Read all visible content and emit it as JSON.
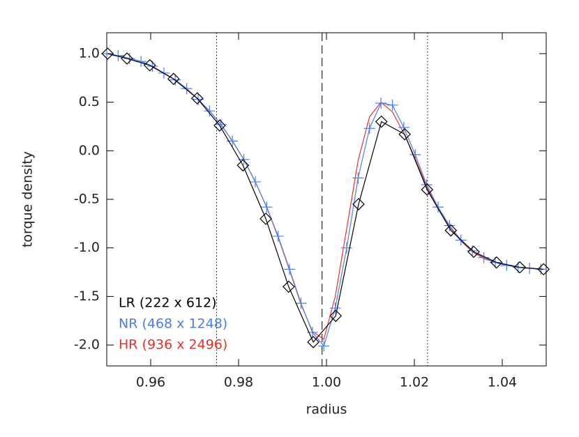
{
  "chart_data": {
    "type": "line",
    "x_label": "radius",
    "y_label": "torque density",
    "xlim": [
      0.95,
      1.05
    ],
    "ylim": [
      -2.215,
      1.215
    ],
    "xticks": [
      0.96,
      0.98,
      {
        "value": 1,
        "label": "1.00"
      },
      1.02,
      1.04
    ],
    "yticks": [
      {
        "value": 1,
        "label": "1.0"
      },
      0.5,
      {
        "value": 0,
        "label": "0.0"
      },
      -0.5,
      {
        "value": -1,
        "label": "-1.0"
      },
      -1.5,
      {
        "value": -2,
        "label": "-2.0"
      }
    ],
    "legend": "lower left",
    "reference_lines": [
      {
        "x": 0.975,
        "style": "dotted"
      },
      {
        "x": 0.999,
        "style": "dashed"
      },
      {
        "x": 1.023,
        "style": "dotted"
      }
    ],
    "series": [
      {
        "name": "LR (222 x 612)",
        "color": "#000000",
        "marker": "diamond",
        "x": [
          0.9502,
          0.9546,
          0.9598,
          0.9652,
          0.9706,
          0.9757,
          0.981,
          0.9862,
          0.9914,
          0.997,
          1.0021,
          1.0073,
          1.0125,
          1.0178,
          1.0229,
          1.0283,
          1.0335,
          1.0387,
          1.044,
          1.0494
        ],
        "values": [
          1.0,
          0.95,
          0.88,
          0.74,
          0.54,
          0.26,
          -0.15,
          -0.7,
          -1.4,
          -1.97,
          -1.7,
          -0.55,
          0.3,
          0.17,
          -0.4,
          -0.82,
          -1.04,
          -1.15,
          -1.2,
          -1.22
        ]
      },
      {
        "name": "NR (468 x 1248)",
        "color": "#4a7cf0",
        "marker": "plus",
        "x": [
          0.95,
          0.9526,
          0.9552,
          0.9578,
          0.9604,
          0.963,
          0.9656,
          0.9682,
          0.9708,
          0.9734,
          0.976,
          0.9786,
          0.9812,
          0.9838,
          0.9864,
          0.989,
          0.9916,
          0.9942,
          0.9968,
          0.9994,
          1.002,
          1.0046,
          1.0072,
          1.0098,
          1.0124,
          1.015,
          1.0176,
          1.0202,
          1.0228,
          1.0254,
          1.028,
          1.0306,
          1.0332,
          1.0358,
          1.0384,
          1.041,
          1.0436,
          1.0462,
          1.0488
        ],
        "values": [
          1.0,
          0.98,
          0.95,
          0.92,
          0.87,
          0.8,
          0.73,
          0.64,
          0.53,
          0.41,
          0.27,
          0.1,
          -0.09,
          -0.32,
          -0.58,
          -0.88,
          -1.22,
          -1.57,
          -1.87,
          -2.01,
          -1.62,
          -1.0,
          -0.28,
          0.23,
          0.49,
          0.47,
          0.24,
          -0.04,
          -0.35,
          -0.58,
          -0.77,
          -0.92,
          -1.03,
          -1.1,
          -1.15,
          -1.18,
          -1.2,
          -1.21,
          -1.22
        ]
      },
      {
        "name": "HR (936 x 2496)",
        "color": "#e8302a",
        "marker": "none",
        "x": [
          0.95,
          0.9526,
          0.9552,
          0.9578,
          0.9604,
          0.963,
          0.9656,
          0.9682,
          0.9708,
          0.9734,
          0.976,
          0.9786,
          0.9812,
          0.9838,
          0.9864,
          0.989,
          0.9916,
          0.9942,
          0.9968,
          0.9994,
          1.002,
          1.0046,
          1.0072,
          1.0098,
          1.0124,
          1.015,
          1.0176,
          1.0202,
          1.0228,
          1.0254,
          1.028,
          1.0306,
          1.0332,
          1.0358,
          1.0384,
          1.041,
          1.0436,
          1.0462,
          1.0488
        ],
        "values": [
          1.0,
          0.98,
          0.95,
          0.92,
          0.87,
          0.8,
          0.73,
          0.64,
          0.53,
          0.41,
          0.27,
          0.1,
          -0.09,
          -0.32,
          -0.58,
          -0.89,
          -1.23,
          -1.58,
          -1.86,
          -1.94,
          -1.5,
          -0.8,
          -0.1,
          0.35,
          0.5,
          0.4,
          0.18,
          -0.08,
          -0.37,
          -0.6,
          -0.78,
          -0.93,
          -1.04,
          -1.11,
          -1.15,
          -1.18,
          -1.2,
          -1.21,
          -1.22
        ]
      }
    ]
  }
}
